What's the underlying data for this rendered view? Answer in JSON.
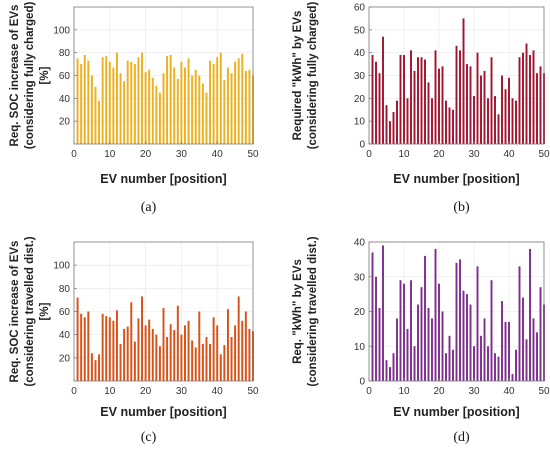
{
  "chart_data": [
    {
      "type": "bar",
      "panel_label": "(a)",
      "ylabel_lines": [
        "Req. SOC increase of EVs",
        "(considering fully charged)",
        "[%]"
      ],
      "xlabel": "EV number [position]",
      "xlim": [
        0,
        50
      ],
      "xticks": [
        0,
        10,
        20,
        30,
        40,
        50
      ],
      "ylim": [
        0,
        120
      ],
      "yticks": [
        20,
        40,
        60,
        80,
        100
      ],
      "grid": true,
      "color": "#EDB120",
      "x": [
        1,
        2,
        3,
        4,
        5,
        6,
        7,
        8,
        9,
        10,
        11,
        12,
        13,
        14,
        15,
        16,
        17,
        18,
        19,
        20,
        21,
        22,
        23,
        24,
        25,
        26,
        27,
        28,
        29,
        30,
        31,
        32,
        33,
        34,
        35,
        36,
        37,
        38,
        39,
        40,
        41,
        42,
        43,
        44,
        45,
        46,
        47,
        48,
        49,
        50
      ],
      "values": [
        75,
        70,
        78,
        73,
        60,
        50,
        38,
        76,
        77,
        72,
        67,
        80,
        62,
        55,
        73,
        72,
        70,
        76,
        80,
        63,
        65,
        58,
        51,
        45,
        62,
        77,
        78,
        67,
        57,
        72,
        67,
        75,
        60,
        65,
        60,
        53,
        45,
        73,
        70,
        76,
        80,
        56,
        67,
        62,
        72,
        75,
        79,
        64,
        65,
        60
      ]
    },
    {
      "type": "bar",
      "panel_label": "(b)",
      "ylabel_lines": [
        "Required \"kWh\" by EVs",
        "(considering fully charged)"
      ],
      "xlabel": "EV number [position]",
      "xlim": [
        0,
        50
      ],
      "xticks": [
        0,
        10,
        20,
        30,
        40,
        50
      ],
      "ylim": [
        0,
        60
      ],
      "yticks": [
        0,
        10,
        20,
        30,
        40,
        50,
        60
      ],
      "grid": true,
      "color": "#A2142F",
      "x": [
        1,
        2,
        3,
        4,
        5,
        6,
        7,
        8,
        9,
        10,
        11,
        12,
        13,
        14,
        15,
        16,
        17,
        18,
        19,
        20,
        21,
        22,
        23,
        24,
        25,
        26,
        27,
        28,
        29,
        30,
        31,
        32,
        33,
        34,
        35,
        36,
        37,
        38,
        39,
        40,
        41,
        42,
        43,
        44,
        45,
        46,
        47,
        48,
        49,
        50
      ],
      "values": [
        39,
        36,
        31,
        47,
        17,
        10,
        14,
        19,
        39,
        39,
        20,
        41,
        32,
        38,
        38,
        37,
        27,
        20,
        41,
        33,
        34,
        19,
        16,
        15,
        43,
        41,
        55,
        35,
        34,
        21,
        40,
        30,
        32,
        20,
        38,
        21,
        13,
        30,
        24,
        29,
        20,
        19,
        38,
        40,
        44,
        39,
        41,
        31,
        34,
        31
      ]
    },
    {
      "type": "bar",
      "panel_label": "(c)",
      "ylabel_lines": [
        "Req. SOC increase of EVs",
        "(considering travelled dist.)",
        "[%]"
      ],
      "xlabel": "EV number [position]",
      "xlim": [
        0,
        50
      ],
      "xticks": [
        0,
        10,
        20,
        30,
        40,
        50
      ],
      "ylim": [
        0,
        120
      ],
      "yticks": [
        20,
        40,
        60,
        80,
        100
      ],
      "grid": true,
      "color": "#D95319",
      "x": [
        1,
        2,
        3,
        4,
        5,
        6,
        7,
        8,
        9,
        10,
        11,
        12,
        13,
        14,
        15,
        16,
        17,
        18,
        19,
        20,
        21,
        22,
        23,
        24,
        25,
        26,
        27,
        28,
        29,
        30,
        31,
        32,
        33,
        34,
        35,
        36,
        37,
        38,
        39,
        40,
        41,
        42,
        43,
        44,
        45,
        46,
        47,
        48,
        49,
        50
      ],
      "values": [
        72,
        58,
        55,
        60,
        24,
        18,
        23,
        58,
        56,
        55,
        52,
        61,
        32,
        45,
        47,
        68,
        34,
        54,
        73,
        48,
        53,
        45,
        40,
        30,
        63,
        38,
        49,
        44,
        65,
        40,
        48,
        52,
        35,
        29,
        60,
        32,
        38,
        32,
        55,
        48,
        23,
        31,
        62,
        38,
        48,
        73,
        52,
        60,
        45,
        43
      ]
    },
    {
      "type": "bar",
      "panel_label": "(d)",
      "ylabel_lines": [
        "Req. \"kWh\" by EVs",
        "(considering travelled dist.)"
      ],
      "xlabel": "EV number [position]",
      "xlim": [
        0,
        50
      ],
      "xticks": [
        0,
        10,
        20,
        30,
        40,
        50
      ],
      "ylim": [
        0,
        40
      ],
      "yticks": [
        0,
        10,
        20,
        30,
        40
      ],
      "grid": true,
      "color": "#7E2F8E",
      "x": [
        1,
        2,
        3,
        4,
        5,
        6,
        7,
        8,
        9,
        10,
        11,
        12,
        13,
        14,
        15,
        16,
        17,
        18,
        19,
        20,
        21,
        22,
        23,
        24,
        25,
        26,
        27,
        28,
        29,
        30,
        31,
        32,
        33,
        34,
        35,
        36,
        37,
        38,
        39,
        40,
        41,
        42,
        43,
        44,
        45,
        46,
        47,
        48,
        49,
        50
      ],
      "values": [
        37,
        30,
        21,
        39,
        6,
        4,
        8,
        18,
        29,
        28,
        15,
        29,
        10,
        22,
        27,
        36,
        21,
        18,
        38,
        28,
        20,
        8,
        13,
        9,
        34,
        35,
        26,
        25,
        22,
        10,
        33,
        13,
        18,
        10,
        29,
        8,
        7,
        23,
        17,
        17,
        2,
        9,
        33,
        24,
        12,
        38,
        18,
        14,
        27,
        22
      ]
    }
  ]
}
